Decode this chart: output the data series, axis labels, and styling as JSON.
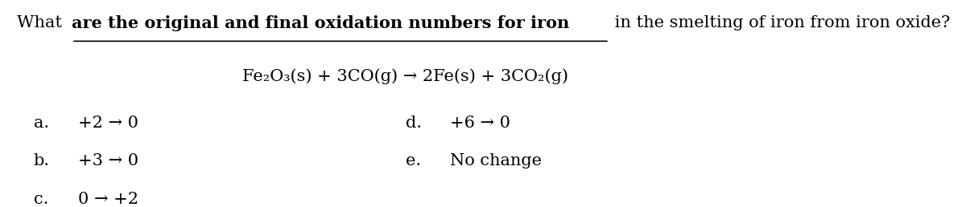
{
  "background_color": "#ffffff",
  "figsize": [
    12.0,
    2.58
  ],
  "dpi": 100,
  "question_prefix": "What ",
  "question_bold_underline": "are the original and final oxidation numbers for iron",
  "question_suffix": " in the smelting of iron from iron oxide?",
  "equation": "Fe₂O₃(s) + 3CO(g) → 2Fe(s) + 3CO₂(g)",
  "options": [
    {
      "label": "a.",
      "text": "+2 → 0"
    },
    {
      "label": "b.",
      "text": "+3 → 0"
    },
    {
      "label": "c.",
      "text": "0 → +2"
    },
    {
      "label": "d.",
      "text": "+6 → 0"
    },
    {
      "label": "e.",
      "text": "No change"
    }
  ],
  "font_size_question": 15,
  "font_size_equation": 15,
  "font_size_options": 15,
  "text_color": "#000000"
}
